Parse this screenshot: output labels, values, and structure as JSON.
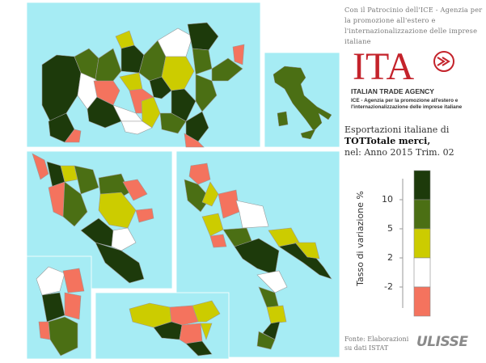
{
  "note": "Con il Patrocinio dell'ICE - Agenzia per la promozione all'estero e l'internazionalizzazione delle imprese italiane",
  "logo": {
    "mark": "ITA",
    "name": "ITALIAN TRADE AGENCY",
    "subtitle": "ICE - Agenzia per la promozione all'estero e l'internazionalizzazione delle imprese italiane"
  },
  "title": {
    "line1": "Esportazioni italiane di",
    "line2": "TOTTotale merci,",
    "line3": "nel: Anno 2015 Trim. 02"
  },
  "legend": {
    "title": "Tasso di variazione %",
    "colors": [
      "#1d3a0b",
      "#4b6f14",
      "#cccc00",
      "#ffffff",
      "#f4735e"
    ],
    "ticks": [
      10,
      5,
      2,
      -2
    ]
  },
  "source": "Fonte: Elaborazioni su dati ISTAT",
  "brand": "ULISSE"
}
